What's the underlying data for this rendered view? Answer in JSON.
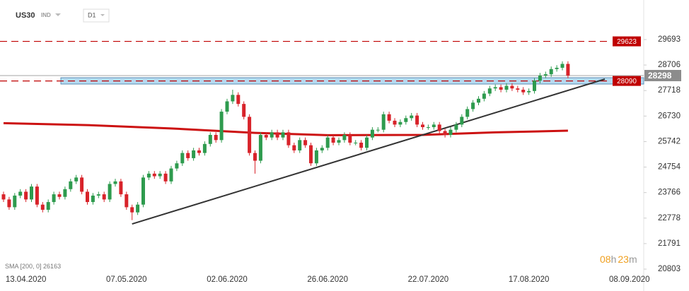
{
  "header": {
    "symbol": "US30",
    "market": "IND",
    "interval": "D1"
  },
  "chart_data": {
    "type": "candlestick",
    "categories": [
      null,
      null,
      null,
      null,
      "13.04.2020",
      null,
      null,
      null,
      null,
      null,
      null,
      null,
      null,
      null,
      null,
      null,
      null,
      null,
      null,
      null,
      null,
      null,
      "07.05.2020",
      null,
      null,
      null,
      null,
      null,
      null,
      null,
      null,
      null,
      null,
      null,
      null,
      null,
      null,
      null,
      null,
      null,
      "02.06.2020",
      null,
      null,
      null,
      null,
      null,
      null,
      null,
      null,
      null,
      null,
      null,
      null,
      null,
      null,
      null,
      null,
      null,
      "26.06.2020",
      null,
      null,
      null,
      null,
      null,
      null,
      null,
      null,
      null,
      null,
      null,
      null,
      null,
      null,
      null,
      null,
      null,
      "22.07.2020",
      null,
      null,
      null,
      null,
      null,
      null,
      null,
      null,
      null,
      null,
      null,
      null,
      null,
      null,
      null,
      null,
      null,
      "17.08.2020",
      null,
      null,
      null,
      null,
      null,
      null,
      null,
      null,
      null,
      null,
      null,
      null,
      null,
      null,
      null,
      null,
      null,
      "08.09.2020"
    ],
    "open": [
      23700,
      23500,
      23200,
      23650,
      23800,
      23500,
      24000,
      23300,
      23100,
      23400,
      23700,
      23600,
      23900,
      24200,
      24350,
      23800,
      23400,
      23650,
      23700,
      23500,
      24100,
      24200,
      23700,
      23200,
      23000,
      23300,
      24350,
      24500,
      24400,
      24500,
      24200,
      24700,
      24900,
      25300,
      25100,
      25400,
      25300,
      25650,
      26000,
      25800,
      26900,
      27300,
      27550,
      27200,
      26700,
      25300,
      25000,
      26000,
      25900,
      26100,
      25900,
      26100,
      25600,
      25400,
      25800,
      25600,
      24900,
      25400,
      25500,
      25900,
      25700,
      25800,
      26000,
      25700,
      25700,
      25500,
      25900,
      26200,
      26200,
      26800,
      26550,
      26400,
      26500,
      26650,
      26750,
      26400,
      26300,
      26300,
      26400,
      26150,
      26000,
      26200,
      26400,
      26700,
      27000,
      27250,
      27400,
      27600,
      27800,
      27850,
      27750,
      27900,
      27800,
      27750,
      27650,
      27700,
      28100,
      28300,
      28350,
      28550,
      28600,
      28750,
      null,
      null,
      null,
      null,
      null,
      null,
      null,
      null,
      null,
      null,
      null
    ],
    "high": [
      23800,
      23600,
      23750,
      23900,
      23900,
      24100,
      24100,
      23400,
      23500,
      23800,
      23800,
      24000,
      24300,
      24450,
      24450,
      23900,
      23750,
      23800,
      23800,
      24200,
      24300,
      24300,
      23800,
      23300,
      23400,
      24450,
      24600,
      24600,
      24600,
      24600,
      24800,
      25000,
      25400,
      25400,
      25500,
      25500,
      25750,
      26100,
      26100,
      27000,
      27400,
      27750,
      27650,
      27300,
      26800,
      25400,
      26100,
      26100,
      26200,
      26200,
      26200,
      26200,
      25700,
      25900,
      25900,
      25700,
      25500,
      25600,
      26000,
      26000,
      25900,
      26100,
      26100,
      25800,
      25800,
      26000,
      26300,
      26300,
      26900,
      26900,
      26650,
      26600,
      26750,
      26850,
      26850,
      26500,
      26400,
      26500,
      26500,
      26250,
      26300,
      26500,
      26800,
      27100,
      27350,
      27500,
      27700,
      27900,
      27950,
      27950,
      28000,
      28000,
      27900,
      27850,
      27800,
      28200,
      28400,
      28450,
      28650,
      28700,
      28850,
      28850,
      null,
      null,
      null,
      null,
      null,
      null,
      null,
      null,
      null,
      null,
      null
    ],
    "low": [
      23400,
      23100,
      23100,
      23550,
      23400,
      23400,
      23200,
      23000,
      23000,
      23300,
      23500,
      23500,
      23800,
      24100,
      23700,
      23300,
      23300,
      23550,
      23400,
      23400,
      24000,
      23600,
      23100,
      22700,
      22900,
      23200,
      24250,
      24300,
      24300,
      24100,
      24100,
      24600,
      24800,
      25000,
      25000,
      25200,
      25200,
      25550,
      25700,
      25700,
      26800,
      27200,
      27100,
      26600,
      25200,
      24500,
      24900,
      25800,
      25800,
      25800,
      25800,
      25500,
      25300,
      25300,
      25500,
      24800,
      24800,
      25300,
      25400,
      25600,
      25600,
      25700,
      25600,
      25600,
      25400,
      25400,
      25800,
      26100,
      26100,
      26450,
      26300,
      26300,
      26400,
      26550,
      26300,
      26200,
      26200,
      26200,
      26050,
      25900,
      25900,
      26100,
      26300,
      26600,
      26900,
      27150,
      27300,
      27500,
      27700,
      27650,
      27650,
      27700,
      27650,
      27550,
      27550,
      27600,
      28000,
      28200,
      28250,
      28450,
      28500,
      28198,
      null,
      null,
      null,
      null,
      null,
      null,
      null,
      null,
      null,
      null,
      null
    ],
    "close": [
      23500,
      23200,
      23650,
      23800,
      23500,
      24000,
      23300,
      23100,
      23400,
      23700,
      23600,
      23900,
      24200,
      24350,
      23800,
      23400,
      23650,
      23700,
      23500,
      24100,
      24200,
      23700,
      23200,
      23000,
      23300,
      24350,
      24500,
      24400,
      24500,
      24200,
      24700,
      24900,
      25300,
      25100,
      25400,
      25300,
      25650,
      26000,
      25800,
      26900,
      27300,
      27550,
      27200,
      26700,
      25300,
      25000,
      26000,
      25900,
      26100,
      25900,
      26100,
      25600,
      25400,
      25800,
      25600,
      24900,
      25400,
      25500,
      25900,
      25700,
      25800,
      26000,
      25700,
      25700,
      25500,
      25900,
      26200,
      26200,
      26800,
      26550,
      26400,
      26500,
      26650,
      26750,
      26400,
      26300,
      26300,
      26400,
      26150,
      26000,
      26200,
      26400,
      26700,
      27000,
      27250,
      27400,
      27600,
      27800,
      27850,
      27750,
      27900,
      27800,
      27750,
      27650,
      27700,
      28100,
      28300,
      28350,
      28550,
      28600,
      28750,
      28298,
      null,
      null,
      null,
      null,
      null,
      null,
      null,
      null,
      null,
      null,
      null
    ],
    "up_color": "#2e9b4e",
    "down_color": "#d8232a",
    "ylim": [
      20803,
      29693
    ],
    "yticks": [
      29693,
      28706,
      27718,
      26730,
      25742,
      24754,
      23766,
      22778,
      21791,
      20803
    ],
    "sma": {
      "name": "SMA [200, 0]",
      "color": "#cc1111",
      "x": [
        0,
        15,
        30,
        45,
        58,
        75,
        88,
        101
      ],
      "values": [
        26456,
        26380,
        26250,
        26080,
        25990,
        26000,
        26100,
        26163
      ]
    },
    "levels": [
      {
        "value": 29623,
        "color": "#c00000"
      },
      {
        "value": 28090,
        "color": "#c00000"
      }
    ],
    "current_price": 28298,
    "zone": [
      27970,
      28216
    ],
    "trendline": {
      "x": [
        23,
        107.6
      ],
      "values": [
        22552,
        28161
      ]
    }
  },
  "timer": {
    "hours": "08",
    "hours_unit": "h",
    "minutes": "23",
    "minutes_unit": "m"
  }
}
